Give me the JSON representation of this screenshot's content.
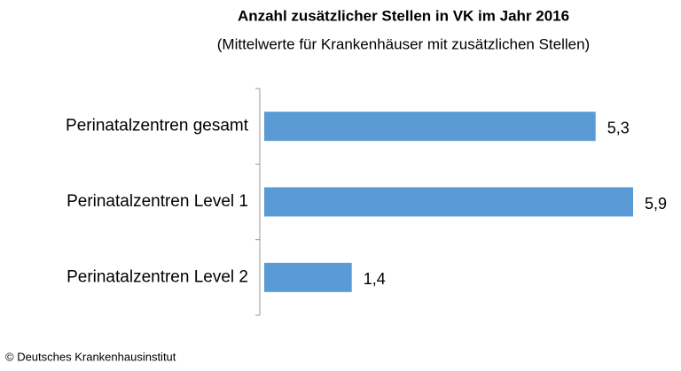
{
  "chart_data": {
    "type": "bar",
    "orientation": "horizontal",
    "title": "Anzahl zusätzlicher Stellen in VK im Jahr 2016",
    "subtitle": "(Mittelwerte für Krankenhäuser mit zusätzlichen Stellen)",
    "categories": [
      "Perinatalzentren gesamt",
      "Perinatalzentren Level 1",
      "Perinatalzentren Level 2"
    ],
    "values": [
      5.3,
      5.9,
      1.4
    ],
    "value_labels": [
      "5,3",
      "5,9",
      "1,4"
    ],
    "color": "#5b9bd5",
    "source": "© Deutsches Krankenhausinstitut"
  }
}
